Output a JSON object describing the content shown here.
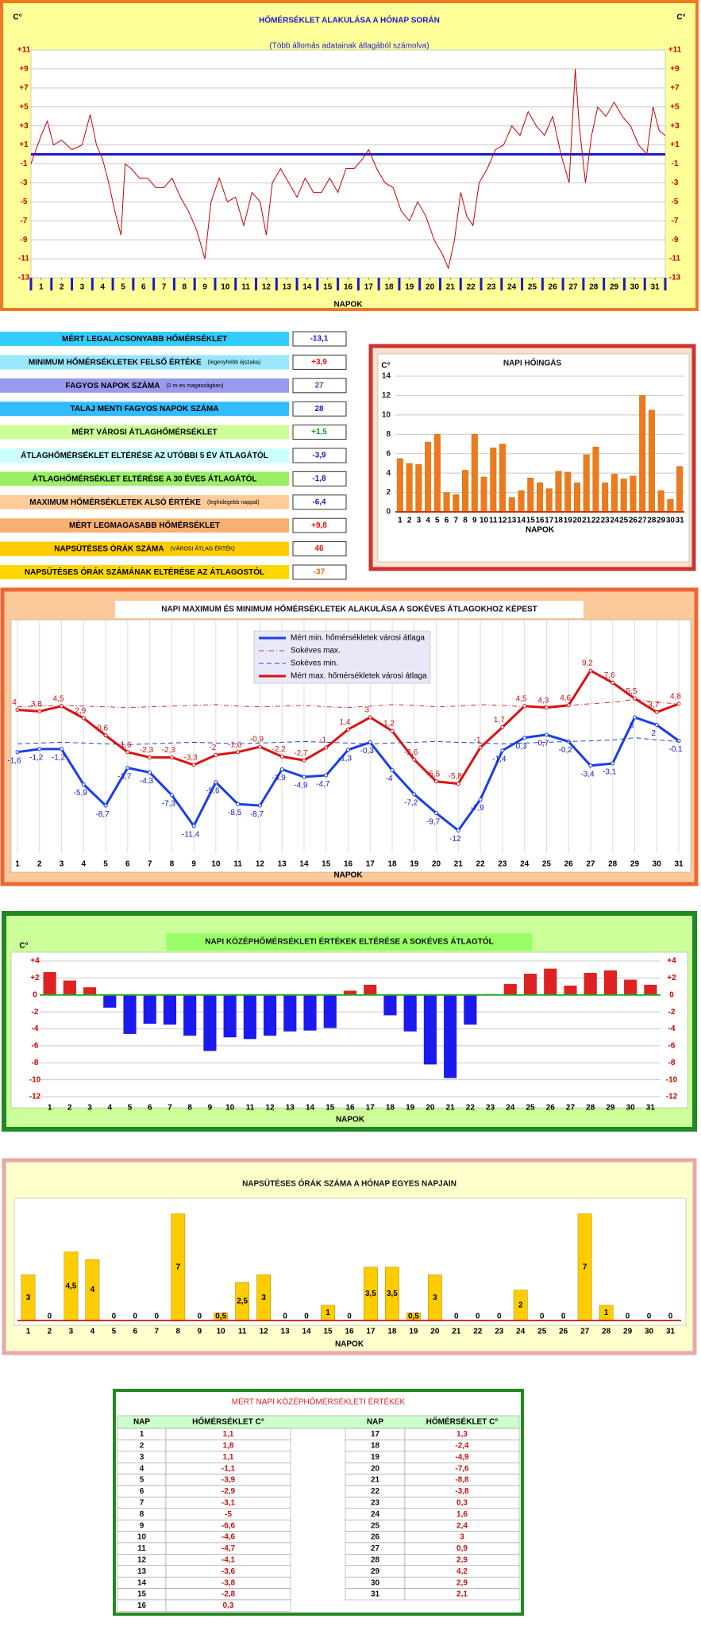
{
  "chart_data": [
    {
      "type": "line",
      "title": "HŐMÉRSÉKLET ALAKULÁSA A HÓNAP SORÁN",
      "subtitle": "(Több állomás adatainak átlagából számolva)",
      "y_unit": "C°",
      "x_label": "NAPOK",
      "color": "#cc0000",
      "zero_color": "#1a1acc",
      "grid": true,
      "x": [
        0.5,
        1,
        1.3,
        1.6,
        2,
        2.5,
        3,
        3.4,
        3.7,
        4,
        4.3,
        4.6,
        4.9,
        5.1,
        5.4,
        5.8,
        6.2,
        6.6,
        7,
        7.4,
        7.8,
        8.2,
        8.6,
        9,
        9.3,
        9.7,
        10.1,
        10.5,
        10.9,
        11.3,
        11.7,
        12,
        12.3,
        12.7,
        13.1,
        13.5,
        13.9,
        14.3,
        14.7,
        15.1,
        15.5,
        15.9,
        16.3,
        16.7,
        17,
        17.4,
        17.8,
        18.2,
        18.6,
        19,
        19.4,
        19.8,
        20.2,
        20.6,
        20.9,
        21.2,
        21.5,
        21.8,
        22.1,
        22.4,
        22.8,
        23.2,
        23.6,
        24,
        24.4,
        24.8,
        25.2,
        25.6,
        26,
        26.4,
        26.8,
        27.1,
        27.3,
        27.6,
        27.9,
        28.2,
        28.6,
        29,
        29.4,
        29.8,
        30.2,
        30.6,
        30.9,
        31.2,
        31.5
      ],
      "values": [
        -1,
        2,
        3.5,
        1,
        1.5,
        0.5,
        1,
        4.2,
        1,
        -0.5,
        -3,
        -6,
        -8.5,
        -1,
        -1.5,
        -2.5,
        -2.5,
        -3.5,
        -3.5,
        -2.5,
        -4.5,
        -6,
        -8,
        -11,
        -5,
        -2.5,
        -5,
        -4.5,
        -7.5,
        -4,
        -5,
        -8.5,
        -3,
        -1.5,
        -3,
        -4.5,
        -2.5,
        -4,
        -4,
        -2.5,
        -4,
        -1.5,
        -1.5,
        -0.5,
        0.5,
        -1.5,
        -3,
        -3.5,
        -6,
        -7,
        -5,
        -6.5,
        -9,
        -10.5,
        -12,
        -9,
        -4,
        -6.5,
        -7.5,
        -3,
        -1.5,
        0.5,
        1,
        3,
        2,
        4.5,
        3,
        2,
        4,
        0,
        -3,
        9,
        3,
        -3,
        2,
        5,
        4,
        5.5,
        4,
        3,
        1,
        0,
        5,
        2.5,
        2
      ],
      "xlim": [
        0.5,
        31.5
      ],
      "xticks": [
        1,
        2,
        3,
        4,
        5,
        6,
        7,
        8,
        9,
        10,
        11,
        12,
        13,
        14,
        15,
        16,
        17,
        18,
        19,
        20,
        21,
        22,
        23,
        24,
        25,
        26,
        27,
        28,
        29,
        30,
        31
      ],
      "ylim": [
        -13,
        11
      ],
      "yticks": [
        {
          "value": 11,
          "label": "+11"
        },
        {
          "value": 9,
          "label": "+9"
        },
        {
          "value": 7,
          "label": "+7"
        },
        {
          "value": 5,
          "label": "+5"
        },
        {
          "value": 3,
          "label": "+3"
        },
        {
          "value": 1,
          "label": "+1"
        },
        -1,
        -3,
        -5,
        -7,
        -9,
        -11,
        -13
      ]
    },
    {
      "type": "bar",
      "title": "NAPI HŐINGÁS",
      "y_unit": "C°",
      "x_label": "NAPOK",
      "color": "#f07820",
      "grid": true,
      "categories": [
        "1",
        "2",
        "3",
        "4",
        "5",
        "6",
        "7",
        "8",
        "9",
        "10",
        "11",
        "12",
        "13",
        "14",
        "15",
        "16",
        "17",
        "18",
        "19",
        "20",
        "21",
        "22",
        "23",
        "24",
        "25",
        "26",
        "27",
        "28",
        "29",
        "30",
        "31"
      ],
      "values": [
        5.5,
        5,
        4.9,
        7.2,
        8,
        2,
        1.8,
        4.3,
        8,
        3.6,
        6.6,
        7,
        1.5,
        2.2,
        3.5,
        3,
        2.4,
        4.2,
        4.1,
        3,
        5.9,
        6.7,
        3,
        3.9,
        3.4,
        3.7,
        12,
        10.5,
        2.2,
        1.3,
        4.7
      ],
      "ylim": [
        0,
        14
      ],
      "yticks": [
        0,
        2,
        4,
        6,
        8,
        10,
        12,
        14
      ]
    },
    {
      "type": "line",
      "title": "NAPI MAXIMUM ÉS MINIMUM HŐMÉRSÉKLETEK ALAKULÁSA A SOKÉVES ÁTLAGOKHOZ KÉPEST",
      "x_label": "NAPOK",
      "categories": [
        "1",
        "2",
        "3",
        "4",
        "5",
        "6",
        "7",
        "8",
        "9",
        "10",
        "11",
        "12",
        "13",
        "14",
        "15",
        "16",
        "17",
        "18",
        "19",
        "20",
        "21",
        "22",
        "23",
        "24",
        "25",
        "26",
        "27",
        "28",
        "29",
        "30",
        "31"
      ],
      "ylim": [
        -15,
        15
      ],
      "series": [
        {
          "name": "Mért min. hőmérsékletek városi átlaga",
          "color": "#1a3ee8",
          "style": "solid",
          "markers": true,
          "label_position": "below",
          "values": [
            -1.6,
            -1.2,
            -1.2,
            -5.9,
            -8.7,
            -3.7,
            -4.3,
            -7.3,
            -11.4,
            -5.6,
            -8.5,
            -8.7,
            -3.9,
            -4.9,
            -4.7,
            -1.3,
            -0.3,
            -4,
            -7.2,
            -9.7,
            -12,
            -7.9,
            -1.4,
            0.3,
            0.7,
            -0.2,
            -3.4,
            -3.1,
            3,
            2,
            -0.1
          ],
          "value_labels": [
            "-1,6",
            "-1,2",
            "-1,2",
            "-5,9",
            "-8,7",
            "-3,7",
            "-4,3",
            "-7,3",
            "-11,4",
            "-5,6",
            "-8,5",
            "-8,7",
            "-3,9",
            "-4,9",
            "-4,7",
            "-1,3",
            "-0,3",
            "-4",
            "-7,2",
            "-9,7",
            "-12",
            "-7,9",
            "-1,4",
            "0,3",
            "0,7",
            "-0,2",
            "-3,4",
            "-3,1",
            "3",
            "2",
            "-0,1"
          ]
        },
        {
          "name": "Sokéves max.",
          "color": "#cc3333",
          "style": "dashdot",
          "values": [
            4.4,
            4.5,
            4.6,
            4.5,
            4.4,
            4.3,
            4.4,
            4.5,
            4.6,
            4.7,
            4.5,
            4.4,
            4.5,
            4.6,
            4.4,
            4.3,
            4.5,
            4.7,
            4.6,
            4.4,
            4.5,
            4.7,
            4.6,
            4.4,
            4.5,
            4.6,
            4.8,
            5,
            5.4,
            5,
            4.8
          ]
        },
        {
          "name": "Sokéves min.",
          "color": "#2244cc",
          "style": "dashed",
          "values": [
            -0.5,
            -0.4,
            -0.3,
            -0.4,
            -0.5,
            -0.6,
            -0.5,
            -0.4,
            -0.3,
            -0.4,
            -0.5,
            -0.4,
            -0.3,
            -0.2,
            -0.3,
            -0.4,
            -0.5,
            -0.4,
            -0.3,
            -0.2,
            -0.3,
            -0.4,
            -0.5,
            -0.4,
            -0.3,
            -0.2,
            -0.1,
            0,
            0.3,
            0,
            -0.2
          ]
        },
        {
          "name": "Mért max. hőmérsékletek városi átlaga",
          "color": "#dd1111",
          "style": "solid",
          "markers": true,
          "label_position": "above",
          "values": [
            4,
            3.8,
            4.5,
            2.9,
            0.6,
            -1.6,
            -2.3,
            -2.3,
            -3.3,
            -2,
            -1.6,
            -0.9,
            -2.2,
            -2.7,
            -1,
            1.4,
            3,
            1.2,
            -2.6,
            -5.5,
            -5.8,
            -1,
            1.7,
            4.5,
            4.3,
            4.6,
            9.2,
            7.6,
            5.5,
            3.7,
            4.8
          ],
          "value_labels": [
            "4",
            "3,8",
            "4,5",
            "2,9",
            "0,6",
            "-1,6",
            "-2,3",
            "-2,3",
            "-3,3",
            "-2",
            "-1,6",
            "-0,9",
            "-2,2",
            "-2,7",
            "-1",
            "1,4",
            "3",
            "1,2",
            "-2,6",
            "-5,5",
            "-5,8",
            "-1",
            "1,7",
            "4,5",
            "4,3",
            "4,6",
            "9,2",
            "7,6",
            "5,5",
            "3,7",
            "4,8"
          ]
        }
      ]
    },
    {
      "type": "bar",
      "title": "NAPI KÖZÉPHŐMÉRSÉKLETI ÉRTÉKEK ELTÉRÉSE A SOKÉVES ÁTLAGTÓL",
      "y_unit": "C°",
      "x_label": "NAPOK",
      "positive_color": "#dd2222",
      "negative_color": "#1a1aee",
      "grid": true,
      "right_axis": true,
      "categories": [
        "1",
        "2",
        "3",
        "4",
        "5",
        "6",
        "7",
        "8",
        "9",
        "10",
        "11",
        "12",
        "13",
        "14",
        "15",
        "16",
        "17",
        "18",
        "19",
        "20",
        "21",
        "22",
        "23",
        "24",
        "25",
        "26",
        "27",
        "28",
        "29",
        "30",
        "31"
      ],
      "values": [
        2.7,
        1.7,
        0.9,
        -1.5,
        -4.6,
        -3.4,
        -3.5,
        -4.8,
        -6.6,
        -5,
        -5.2,
        -4.8,
        -4.3,
        -4.2,
        -3.9,
        0.5,
        1.2,
        -2.4,
        -4.3,
        -8.2,
        -9.8,
        -3.5,
        0.1,
        1.3,
        2.5,
        3.1,
        1.1,
        2.6,
        2.9,
        1.8,
        1.2
      ],
      "ylim": [
        -12,
        4
      ],
      "yticks": [
        {
          "value": 4,
          "label": "+4"
        },
        {
          "value": 2,
          "label": "+2"
        },
        0,
        -2,
        -4,
        -6,
        -8,
        -10,
        -12
      ]
    },
    {
      "type": "bar",
      "title": "NAPSÜTÉSES ÓRÁK SZÁMA A HÓNAP EGYES NAPJAIN",
      "x_label": "NAPOK",
      "color": "#ffcc00",
      "categories": [
        "1",
        "2",
        "3",
        "4",
        "5",
        "6",
        "7",
        "8",
        "9",
        "10",
        "11",
        "12",
        "13",
        "14",
        "15",
        "16",
        "17",
        "18",
        "19",
        "20",
        "21",
        "22",
        "23",
        "24",
        "25",
        "26",
        "27",
        "28",
        "29",
        "30",
        "31"
      ],
      "values": [
        3,
        0,
        4.5,
        4,
        0,
        0,
        0,
        7,
        0,
        0.5,
        2.5,
        3,
        0,
        0,
        1,
        0,
        3.5,
        3.5,
        0.5,
        3,
        0,
        0,
        0,
        2,
        0,
        0,
        7,
        1,
        0,
        0,
        0
      ],
      "value_labels": [
        "3",
        "0",
        "4,5",
        "4",
        "0",
        "0",
        "0",
        "7",
        "0",
        "0,5",
        "2,5",
        "3",
        "0",
        "0",
        "1",
        "0",
        "3,5",
        "3,5",
        "0,5",
        "3",
        "0",
        "0",
        "0",
        "2",
        "0",
        "0",
        "7",
        "1",
        "0",
        "0",
        "0"
      ],
      "ylim": [
        0,
        7.5
      ]
    }
  ],
  "stats": [
    {
      "label": "MÉRT LEGALACSONYABB HŐMÉRSÉKLET",
      "value": "-13,1",
      "color": "#33ccff",
      "value_color": "#1a1acc"
    },
    {
      "label": "MINIMUM HŐMÉRSÉKLETEK FELSŐ ÉRTÉKE",
      "note": "(legenyhébb éjszaka)",
      "value": "+3,9",
      "color": "#99e6ff",
      "value_color": "#dd1111"
    },
    {
      "label": "FAGYOS NAPOK SZÁMA",
      "note": "(2 m-es magasságban)",
      "value": "27",
      "color": "#9999ee",
      "value_color": "#7733aa"
    },
    {
      "label": "TALAJ MENTI FAGYOS NAPOK SZÁMA",
      "value": "28",
      "color": "#33bbff",
      "value_color": "#1a1acc"
    },
    {
      "label": "MÉRT VÁROSI ÁTLAGHŐMÉRSÉKLET",
      "value": "+1,5",
      "color": "#ccff99",
      "value_color": "#119911"
    },
    {
      "label": "ÁTLAGHŐMÉRSÉKLET ELTÉRÉSE AZ UTÓBBI 5 ÉV ÁTLAGÁTÓL",
      "value": "-3,9",
      "color": "#ccffff",
      "value_color": "#1a1acc"
    },
    {
      "label": "ÁTLAGHŐMÉRSÉKLET ELTÉRÉSE A 30 ÉVES ÁTLAGÁTÓL",
      "value": "-1,8",
      "color": "#99ee66",
      "value_color": "#1a1acc"
    },
    {
      "label": "MAXIMUM HŐMÉRSÉKLETEK ALSÓ ÉRTÉKE",
      "note": "(leghidegebb nappal)",
      "value": "-6,4",
      "color": "#ffcc99",
      "value_color": "#1a1acc"
    },
    {
      "label": "MÉRT LEGMAGASABB HŐMÉRSÉKLET",
      "value": "+9,8",
      "color": "#f8b070",
      "value_color": "#dd1111"
    },
    {
      "label": "NAPSÜTÉSES ÓRÁK SZÁMA",
      "note": "(VÁROSI ÁTLAG ÉRTÉK)",
      "value": "46",
      "color": "#ffcc00",
      "value_color": "#dd1111"
    },
    {
      "label": "NAPSÜTÉSES ÓRÁK SZÁMÁNAK ELTÉRÉSE AZ ÁTLAGOSTÓL",
      "value": "-37",
      "color": "#ffd700",
      "value_color": "#ee6600"
    }
  ],
  "table": {
    "title": "MÉRT NAPI KÖZÉPHŐMÉRSÉKLETI ÉRTÉKEK",
    "headers": [
      "NAP",
      "HŐMÉRSÉKLET  C°",
      "NAP",
      "HŐMÉRSÉKLET  C°"
    ],
    "left_rows": [
      [
        "1",
        "1,1"
      ],
      [
        "2",
        "1,8"
      ],
      [
        "3",
        "1,1"
      ],
      [
        "4",
        "-1,1"
      ],
      [
        "5",
        "-3,9"
      ],
      [
        "6",
        "-2,9"
      ],
      [
        "7",
        "-3,1"
      ],
      [
        "8",
        "-5"
      ],
      [
        "9",
        "-6,6"
      ],
      [
        "10",
        "-4,6"
      ],
      [
        "11",
        "-4,7"
      ],
      [
        "12",
        "-4,1"
      ],
      [
        "13",
        "-3,6"
      ],
      [
        "14",
        "-3,8"
      ],
      [
        "15",
        "-2,8"
      ],
      [
        "16",
        "0,3"
      ]
    ],
    "right_rows": [
      [
        "17",
        "1,3"
      ],
      [
        "18",
        "-2,4"
      ],
      [
        "19",
        "-4,9"
      ],
      [
        "20",
        "-7,6"
      ],
      [
        "21",
        "-8,8"
      ],
      [
        "22",
        "-3,8"
      ],
      [
        "23",
        "0,3"
      ],
      [
        "24",
        "1,6"
      ],
      [
        "25",
        "2,4"
      ],
      [
        "26",
        "3"
      ],
      [
        "27",
        "0,9"
      ],
      [
        "28",
        "2,9"
      ],
      [
        "29",
        "4,2"
      ],
      [
        "30",
        "2,9"
      ],
      [
        "31",
        "2,1"
      ]
    ]
  }
}
